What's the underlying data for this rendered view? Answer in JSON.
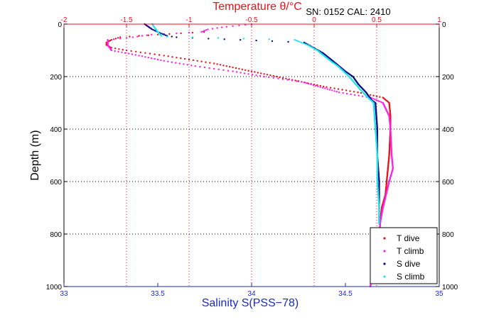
{
  "chart_data": {
    "type": "scatter",
    "title": "Temperature θ/°C",
    "subtitle": "SN: 0152  CAL: 2410",
    "ylabel": "Depth (m)",
    "xlabel_bottom": "Salinity S(PSS−78)",
    "xlabel_top": "Temperature θ/°C",
    "x_bottom": {
      "label": "Salinity S(PSS−78)",
      "range": [
        33,
        35
      ],
      "ticks": [
        33,
        33.5,
        34,
        34.5,
        35
      ],
      "tick_labels": [
        "33",
        "33.5",
        "34",
        "34.5",
        "35"
      ]
    },
    "x_top": {
      "label": "Temperature θ/°C",
      "range": [
        -2,
        1
      ],
      "ticks": [
        -2,
        -1.5,
        -1,
        -0.5,
        0,
        0.5,
        1
      ],
      "tick_labels": [
        "-2",
        "-1.5",
        "-1",
        "-0.5",
        "0",
        "0.5",
        "1"
      ]
    },
    "y": {
      "label": "Depth (m)",
      "range": [
        0,
        1000
      ],
      "reversed": true,
      "ticks": [
        0,
        200,
        400,
        600,
        800,
        1000
      ],
      "tick_labels": [
        "0",
        "200",
        "400",
        "600",
        "800",
        "1000"
      ]
    },
    "grid": true,
    "legend_position": "bottom-right",
    "series": [
      {
        "name": "T dive",
        "axis": "temperature",
        "color": "#e8141b",
        "depth": [
          30,
          40,
          50,
          60,
          70,
          80,
          90,
          100,
          120,
          150,
          180,
          200,
          220,
          240,
          260,
          280,
          300,
          350,
          400,
          500,
          600,
          650,
          700,
          750,
          800,
          850
        ],
        "values": [
          -0.88,
          -1.25,
          -1.55,
          -1.62,
          -1.66,
          -1.66,
          -1.62,
          -1.5,
          -1.2,
          -0.8,
          -0.5,
          -0.3,
          -0.1,
          0.1,
          0.35,
          0.55,
          0.6,
          0.61,
          0.61,
          0.6,
          0.58,
          0.57,
          0.54,
          0.53,
          0.52,
          0.5
        ]
      },
      {
        "name": "T climb",
        "axis": "temperature",
        "color": "#ff1ee6",
        "depth": [
          0,
          10,
          20,
          30,
          40,
          50,
          60,
          70,
          80,
          100,
          120,
          140,
          160,
          180,
          200,
          220,
          240,
          260,
          280,
          300,
          350,
          400,
          500,
          550,
          600,
          700,
          750,
          800,
          850,
          900,
          950,
          1000
        ],
        "values": [
          -0.5,
          -0.7,
          -0.85,
          -0.9,
          -1.3,
          -1.45,
          -1.65,
          -1.65,
          -1.65,
          -1.62,
          -1.4,
          -1.2,
          -0.95,
          -0.65,
          -0.4,
          -0.1,
          0.05,
          0.2,
          0.45,
          0.55,
          0.6,
          0.61,
          0.62,
          0.63,
          0.6,
          0.55,
          0.53,
          0.52,
          0.5,
          0.48,
          0.46,
          0.45
        ]
      },
      {
        "name": "S dive",
        "axis": "salinity",
        "color": "#0a0a8c",
        "depth": [
          0,
          20,
          30,
          45,
          50,
          70,
          90,
          110,
          150,
          180,
          200,
          230,
          260,
          290,
          300,
          400,
          500,
          600,
          700,
          760
        ],
        "values": [
          33.43,
          33.47,
          33.5,
          33.55,
          33.6,
          34.28,
          34.33,
          34.38,
          34.45,
          34.5,
          34.54,
          34.57,
          34.61,
          34.64,
          34.66,
          34.67,
          34.67,
          34.68,
          34.68,
          34.68
        ]
      },
      {
        "name": "S climb",
        "axis": "salinity",
        "color": "#1ee6e6",
        "depth": [
          0,
          30,
          45,
          48,
          60,
          80,
          100,
          140,
          160,
          180,
          200,
          250,
          280,
          300,
          400,
          500,
          600,
          700,
          760
        ],
        "values": [
          33.47,
          33.5,
          33.52,
          33.55,
          34.23,
          34.3,
          34.35,
          34.42,
          34.46,
          34.49,
          34.52,
          34.58,
          34.62,
          34.65,
          34.66,
          34.67,
          34.67,
          34.68,
          34.68
        ]
      }
    ]
  }
}
